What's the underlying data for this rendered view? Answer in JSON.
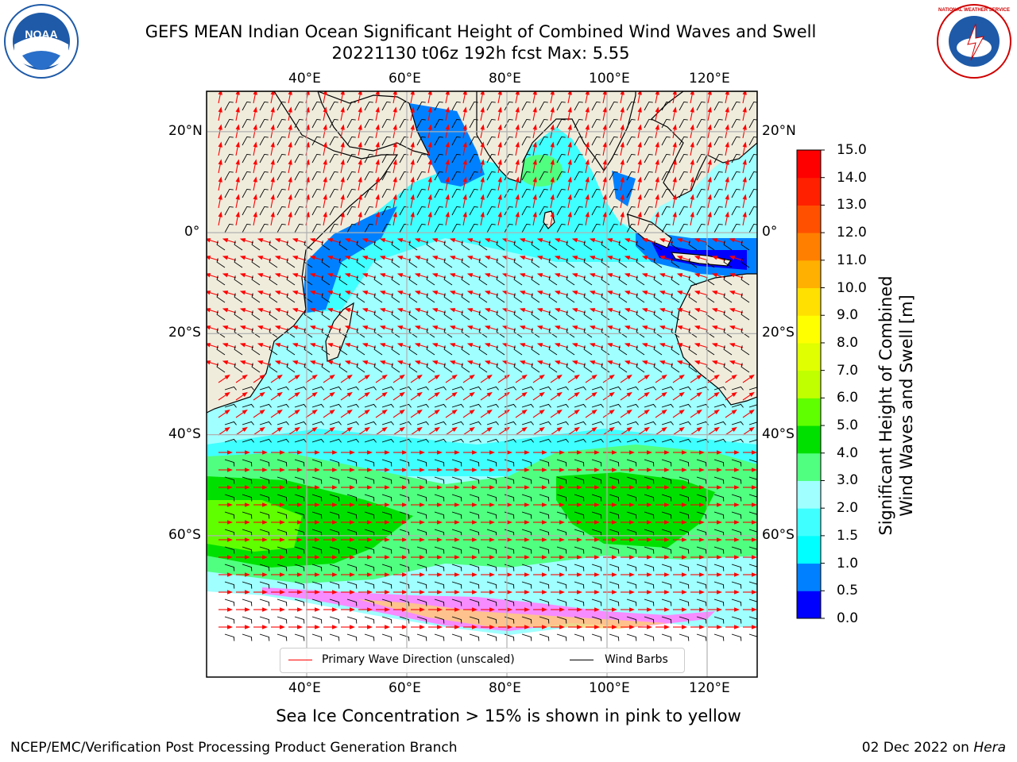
{
  "title": {
    "line1": "GEFS MEAN Indian Ocean Significant Height of Combined Wind Waves and Swell",
    "line2": "20221130 t06z 192h fcst   Max: 5.55"
  },
  "logos": {
    "noaa": {
      "icon": "noaa-seal-icon",
      "text": "NOAA"
    },
    "nws": {
      "icon": "nws-seal-icon",
      "ring_text": "NATIONAL WEATHER SERVICE"
    }
  },
  "map": {
    "lon_range": [
      20,
      130
    ],
    "lat_range": [
      -88,
      28
    ],
    "lon_ticks": [
      {
        "value": 40,
        "label": "40°E"
      },
      {
        "value": 60,
        "label": "60°E"
      },
      {
        "value": 80,
        "label": "80°E"
      },
      {
        "value": 100,
        "label": "100°E"
      },
      {
        "value": 120,
        "label": "120°E"
      }
    ],
    "lat_ticks": [
      {
        "value": 20,
        "label": "20°N"
      },
      {
        "value": 0,
        "label": "0°"
      },
      {
        "value": -20,
        "label": "20°S"
      },
      {
        "value": -40,
        "label": "40°S"
      },
      {
        "value": -60,
        "label": "60°S"
      }
    ],
    "colors": {
      "land": "#efecdc",
      "coast": "#000000",
      "grid": "#b0b0b0",
      "wave_arrow": "#ff0000",
      "wind_barb": "#000000"
    }
  },
  "legend": {
    "wave": {
      "label": "Primary Wave Direction (unscaled)",
      "color": "#ff0000"
    },
    "wind": {
      "label": "Wind Barbs",
      "color": "#000000"
    }
  },
  "colorbar": {
    "title_line1": "Significant Height of Combined",
    "title_line2": "Wind Waves and Swell [m]",
    "levels": [
      {
        "label": "0.0",
        "color": "#0000ff"
      },
      {
        "label": "0.5",
        "color": "#0080ff"
      },
      {
        "label": "1.0",
        "color": "#00ffff"
      },
      {
        "label": "1.5",
        "color": "#40ffff"
      },
      {
        "label": "2.0",
        "color": "#a0ffff"
      },
      {
        "label": "3.0",
        "color": "#50ff80"
      },
      {
        "label": "4.0",
        "color": "#00e000"
      },
      {
        "label": "5.0",
        "color": "#60ff00"
      },
      {
        "label": "6.0",
        "color": "#c0ff00"
      },
      {
        "label": "7.0",
        "color": "#e0ff00"
      },
      {
        "label": "8.0",
        "color": "#ffff00"
      },
      {
        "label": "9.0",
        "color": "#ffe000"
      },
      {
        "label": "10.0",
        "color": "#ffb000"
      },
      {
        "label": "11.0",
        "color": "#ff8000"
      },
      {
        "label": "12.0",
        "color": "#ff5000"
      },
      {
        "label": "13.0",
        "color": "#ff2000"
      },
      {
        "label": "14.0",
        "color": "#ff0000"
      },
      {
        "label": "15.0",
        "color": null
      }
    ]
  },
  "footer": {
    "ice_note": "Sea Ice Concentration > 15% is shown in pink to yellow",
    "credit": "NCEP/EMC/Verification Post Processing Product Generation Branch",
    "date": "02 Dec 2022 on",
    "host": "Hera"
  }
}
